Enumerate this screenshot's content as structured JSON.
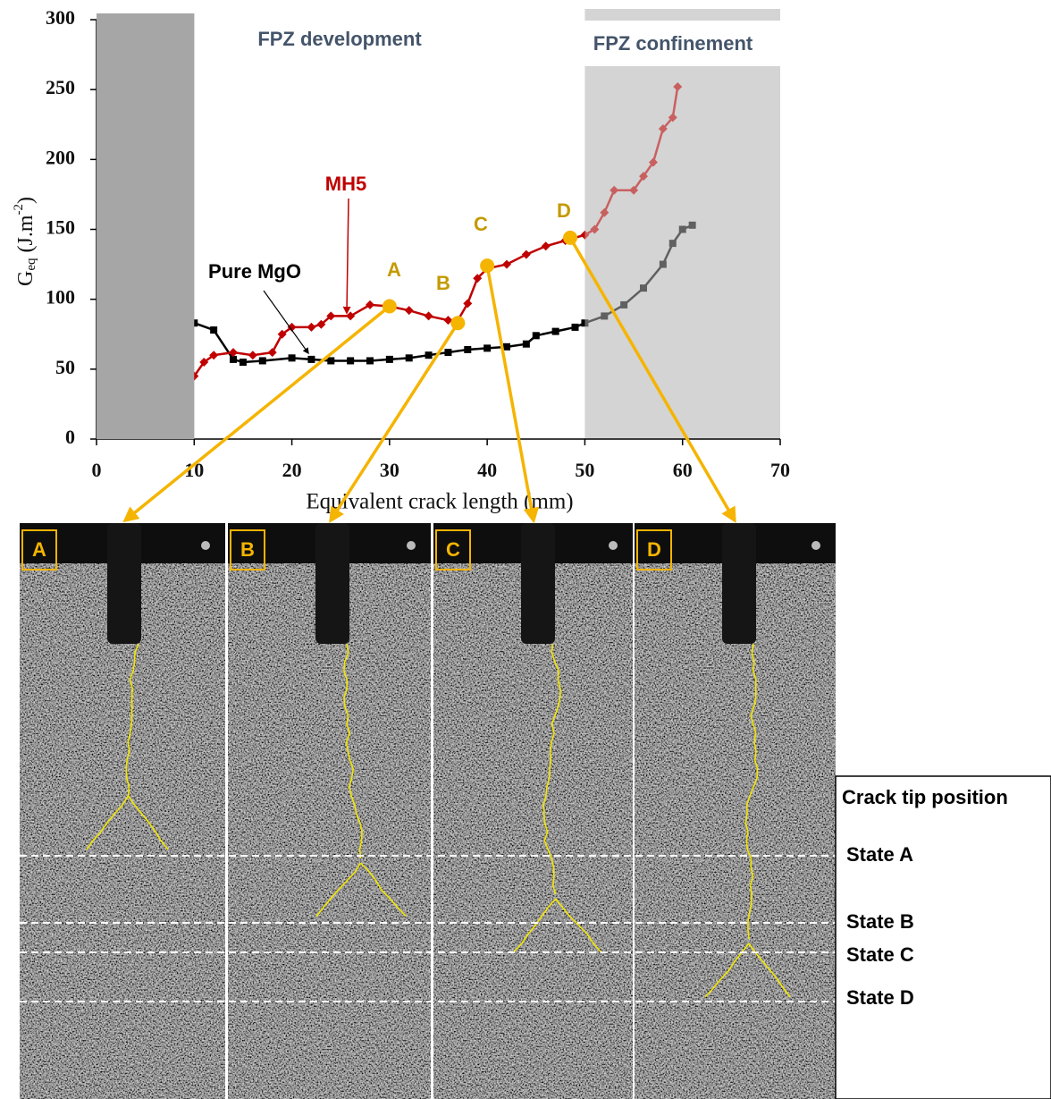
{
  "chart_data": {
    "type": "line",
    "x_label": "Equivalent crack length (mm)",
    "y_label": {
      "base": "G",
      "sub": "eq",
      "unit": "(J.m",
      "sup": "-2",
      "end": ")"
    },
    "xlim": [
      0,
      70
    ],
    "ylim": [
      0,
      300
    ],
    "xticks": [
      0,
      10,
      20,
      30,
      40,
      50,
      60,
      70
    ],
    "yticks": [
      0,
      50,
      100,
      150,
      200,
      250,
      300
    ],
    "zones": [
      {
        "label": "FPZ development",
        "x": [
          0,
          10
        ],
        "color": "#a6a6a6"
      },
      {
        "label": "FPZ confinement",
        "x": [
          50,
          70
        ],
        "color": "#d4d4d4"
      }
    ],
    "series": [
      {
        "name": "Pure MgO",
        "color": "#000000",
        "x": [
          8,
          10,
          12,
          14,
          15,
          17,
          20,
          22,
          24,
          26,
          28,
          30,
          32,
          34,
          36,
          38,
          40,
          42,
          44,
          45,
          47,
          49,
          50,
          52,
          54,
          56,
          58,
          59,
          60,
          61
        ],
        "values": [
          87,
          83,
          78,
          57,
          55,
          56,
          58,
          57,
          56,
          56,
          56,
          57,
          58,
          60,
          62,
          64,
          65,
          66,
          68,
          74,
          77,
          80,
          83,
          88,
          96,
          108,
          125,
          140,
          150,
          153
        ]
      },
      {
        "name": "MH5",
        "color": "#c00000",
        "x": [
          10,
          11,
          12,
          14,
          16,
          18,
          19,
          20,
          22,
          23,
          24,
          26,
          28,
          30,
          32,
          34,
          36,
          37,
          38,
          39,
          40,
          42,
          44,
          46,
          48,
          50,
          51,
          52,
          53,
          55,
          56,
          57,
          58,
          59,
          59.5
        ],
        "values": [
          45,
          55,
          60,
          62,
          60,
          62,
          75,
          80,
          80,
          82,
          88,
          88,
          96,
          95,
          92,
          88,
          85,
          85,
          97,
          115,
          122,
          125,
          132,
          138,
          142,
          146,
          150,
          162,
          178,
          178,
          188,
          198,
          222,
          230,
          252
        ]
      }
    ],
    "points": [
      {
        "label": "A",
        "x": 30,
        "y": 95
      },
      {
        "label": "B",
        "x": 37,
        "y": 83
      },
      {
        "label": "C",
        "x": 40,
        "y": 124
      },
      {
        "label": "D",
        "x": 48.5,
        "y": 144
      }
    ]
  },
  "panels": [
    {
      "label": "A"
    },
    {
      "label": "B"
    },
    {
      "label": "C"
    },
    {
      "label": "D"
    }
  ],
  "crack_tip": {
    "title": "Crack tip position",
    "states": [
      "State A",
      "State B",
      "State C",
      "State D"
    ]
  }
}
